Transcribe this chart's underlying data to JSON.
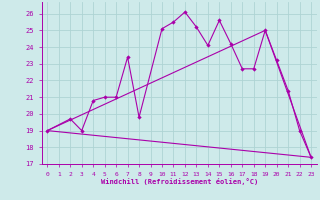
{
  "xlabel": "Windchill (Refroidissement éolien,°C)",
  "bg_color": "#ceeaea",
  "line_color": "#aa00aa",
  "grid_color": "#aed4d4",
  "xlim": [
    -0.5,
    23.5
  ],
  "ylim": [
    17,
    26.7
  ],
  "xticks": [
    0,
    1,
    2,
    3,
    4,
    5,
    6,
    7,
    8,
    9,
    10,
    11,
    12,
    13,
    14,
    15,
    16,
    17,
    18,
    19,
    20,
    21,
    22,
    23
  ],
  "yticks": [
    17,
    18,
    19,
    20,
    21,
    22,
    23,
    24,
    25,
    26
  ],
  "series": [
    [
      0,
      19.0
    ],
    [
      2,
      19.7
    ],
    [
      3,
      19.0
    ],
    [
      4,
      20.8
    ],
    [
      5,
      21.0
    ],
    [
      6,
      21.0
    ],
    [
      7,
      23.4
    ],
    [
      8,
      19.8
    ],
    [
      10,
      25.1
    ],
    [
      11,
      25.5
    ],
    [
      12,
      26.1
    ],
    [
      13,
      25.2
    ],
    [
      14,
      24.1
    ],
    [
      15,
      25.6
    ],
    [
      16,
      24.2
    ],
    [
      17,
      22.7
    ],
    [
      18,
      22.7
    ],
    [
      19,
      25.0
    ],
    [
      20,
      23.2
    ],
    [
      21,
      21.4
    ],
    [
      22,
      19.0
    ],
    [
      23,
      17.4
    ]
  ],
  "line2": [
    [
      0,
      19.0
    ],
    [
      23,
      17.4
    ]
  ],
  "line3": [
    [
      0,
      19.0
    ],
    [
      19,
      25.0
    ],
    [
      23,
      17.4
    ]
  ]
}
